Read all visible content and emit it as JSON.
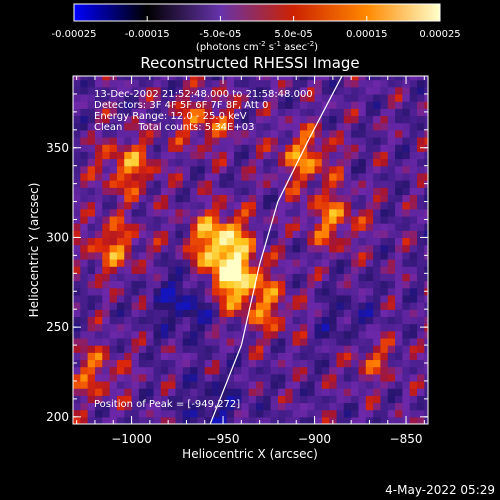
{
  "colorbar": {
    "ticks": [
      "-0.00025",
      "-0.00015",
      "-5.0e-05",
      "5.0e-05",
      "0.00015",
      "0.00025"
    ],
    "tick_values": [
      -0.00025,
      -0.00015,
      -5e-05,
      5e-05,
      0.00015,
      0.00025
    ],
    "range": [
      -0.00025,
      0.00025
    ],
    "label_lead": "(photons cm",
    "label_sup1": "-2",
    "label_mid1": " s",
    "label_sup2": "-1",
    "label_mid2": " asec",
    "label_sup3": "-2",
    "label_tail": ")",
    "colors": [
      "#0000ff",
      "#000000",
      "#6633aa",
      "#cc2200",
      "#ff8800",
      "#ffffcc"
    ]
  },
  "chart_data": {
    "type": "heatmap",
    "title": "Reconstructed RHESSI Image",
    "xlabel": "Heliocentric X (arcsec)",
    "ylabel": "Heliocentric Y (arcsec)",
    "xlim": [
      -1032,
      -838
    ],
    "ylim": [
      196,
      390
    ],
    "xticks": [
      -1000,
      -950,
      -900,
      -850
    ],
    "xtick_labels": [
      "−1000",
      "−950",
      "−900",
      "−850"
    ],
    "yticks": [
      200,
      250,
      300,
      350
    ],
    "ytick_labels": [
      "200",
      "250",
      "300",
      "350"
    ],
    "colormap": "diverging blue-black-purple-red-yellow",
    "hotspots": [
      {
        "x": -945,
        "y": 278,
        "intensity": 1.0
      },
      {
        "x": -952,
        "y": 300,
        "intensity": 0.85
      },
      {
        "x": -1002,
        "y": 340,
        "intensity": 0.6
      },
      {
        "x": -1010,
        "y": 295,
        "intensity": 0.55
      },
      {
        "x": -905,
        "y": 345,
        "intensity": 0.6
      },
      {
        "x": -890,
        "y": 310,
        "intensity": 0.55
      },
      {
        "x": -960,
        "y": 365,
        "intensity": 0.5
      },
      {
        "x": -870,
        "y": 235,
        "intensity": 0.45
      },
      {
        "x": -925,
        "y": 260,
        "intensity": 0.45
      },
      {
        "x": -1020,
        "y": 225,
        "intensity": 0.45
      }
    ],
    "coldspots": [
      {
        "x": -970,
        "y": 265,
        "intensity": 0.9
      },
      {
        "x": -880,
        "y": 250,
        "intensity": 0.6
      },
      {
        "x": -955,
        "y": 205,
        "intensity": 0.6
      }
    ],
    "limb": [
      [
        -957,
        196
      ],
      [
        -940,
        240
      ],
      [
        -930,
        285
      ],
      [
        -920,
        320
      ],
      [
        -903,
        355
      ],
      [
        -885,
        390
      ]
    ],
    "peak": {
      "x": -949,
      "y": 272
    }
  },
  "annotations": {
    "time": "13-Dec-2002 21:52:48.000 to 21:58:48.000",
    "detectors": "Detectors: 3F 4F 5F 6F 7F 8F, Att 0",
    "energy": "Energy Range: 12.0 - 25.0 keV",
    "clean": "Clean     Total counts: 5.34E+03",
    "peak": "Position of Peak = [-949,272]"
  },
  "footer": {
    "date": "4-May-2022 05:29"
  }
}
